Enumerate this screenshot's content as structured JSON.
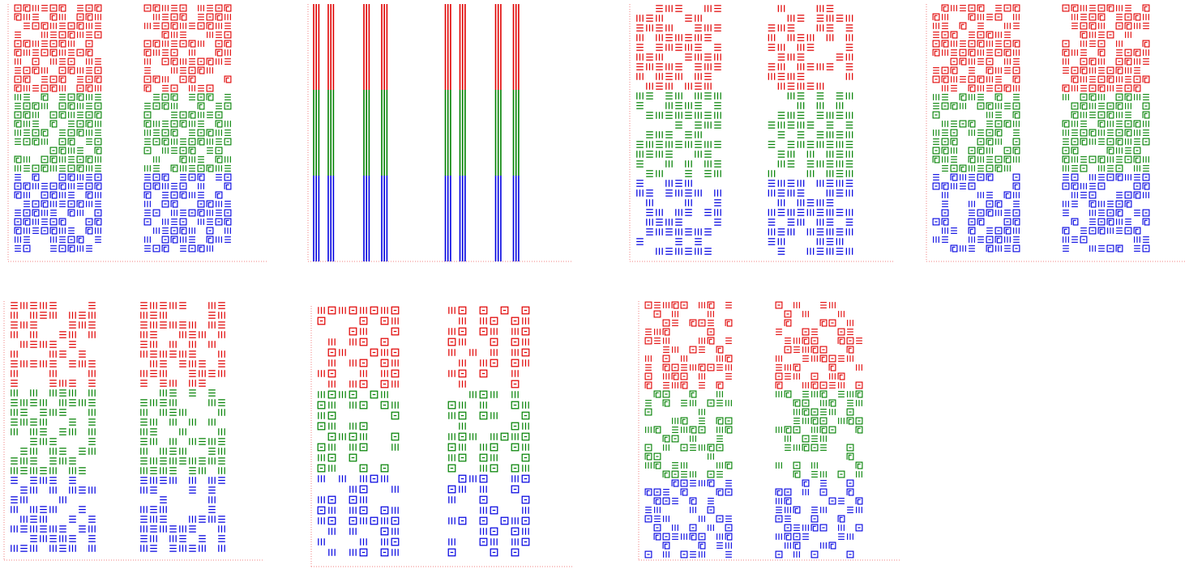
{
  "colors": {
    "band_top": "#e00000",
    "band_middle": "#008000",
    "band_bottom": "#0000e0",
    "axis_dotted": "#f08080",
    "background": "#ffffff"
  },
  "band_order": [
    "red",
    "green",
    "blue"
  ],
  "panels": [
    {
      "row": 1,
      "col": 1,
      "style": "glyph-blocks",
      "repeats": 2
    },
    {
      "row": 1,
      "col": 2,
      "style": "vertical-stripes",
      "repeats": 2
    },
    {
      "row": 1,
      "col": 3,
      "style": "spiral-maze",
      "repeats": 2
    },
    {
      "row": 1,
      "col": 4,
      "style": "glyph-blocks",
      "repeats": 2
    },
    {
      "row": 2,
      "col": 1,
      "style": "spiral-maze",
      "repeats": 2
    },
    {
      "row": 2,
      "col": 2,
      "style": "grid-blocks",
      "repeats": 2
    },
    {
      "row": 2,
      "col": 3,
      "style": "scattered-glyphs",
      "repeats": 2
    }
  ]
}
